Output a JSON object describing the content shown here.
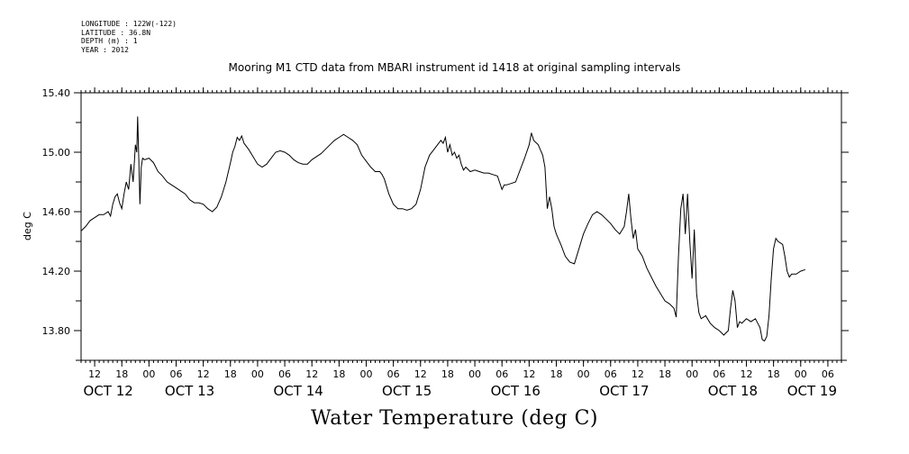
{
  "header": {
    "longitude": "LONGITUDE : 122W(-122)",
    "latitude": "LATITUDE : 36.8N",
    "depth": "DEPTH (m) : 1",
    "year": "YEAR : 2012"
  },
  "chart_data": {
    "type": "line",
    "title": "Mooring M1 CTD data from MBARI instrument id 1418 at original sampling intervals",
    "xlabel": "Water Temperature (deg C)",
    "ylabel": "deg C",
    "x_units": "hours since OCT 12 00:00",
    "xlim": [
      9,
      177
    ],
    "ylim": [
      13.6,
      15.4
    ],
    "yticks": [
      "13.80",
      "14.20",
      "14.60",
      "15.00",
      "15.40"
    ],
    "ytick_values": [
      13.8,
      14.2,
      14.6,
      15.0,
      15.4
    ],
    "hour_ticks": [
      {
        "x": 12,
        "label": "12"
      },
      {
        "x": 18,
        "label": "18"
      },
      {
        "x": 24,
        "label": "00"
      },
      {
        "x": 30,
        "label": "06"
      },
      {
        "x": 36,
        "label": "12"
      },
      {
        "x": 42,
        "label": "18"
      },
      {
        "x": 48,
        "label": "00"
      },
      {
        "x": 54,
        "label": "06"
      },
      {
        "x": 60,
        "label": "12"
      },
      {
        "x": 66,
        "label": "18"
      },
      {
        "x": 72,
        "label": "00"
      },
      {
        "x": 78,
        "label": "06"
      },
      {
        "x": 84,
        "label": "12"
      },
      {
        "x": 90,
        "label": "18"
      },
      {
        "x": 96,
        "label": "00"
      },
      {
        "x": 102,
        "label": "06"
      },
      {
        "x": 108,
        "label": "12"
      },
      {
        "x": 114,
        "label": "18"
      },
      {
        "x": 120,
        "label": "00"
      },
      {
        "x": 126,
        "label": "06"
      },
      {
        "x": 132,
        "label": "12"
      },
      {
        "x": 138,
        "label": "18"
      },
      {
        "x": 144,
        "label": "00"
      },
      {
        "x": 150,
        "label": "06"
      },
      {
        "x": 156,
        "label": "12"
      },
      {
        "x": 162,
        "label": "18"
      },
      {
        "x": 168,
        "label": "00"
      },
      {
        "x": 174,
        "label": "06"
      }
    ],
    "day_labels": [
      {
        "x": 15,
        "label": "OCT 12"
      },
      {
        "x": 33,
        "label": "OCT 13"
      },
      {
        "x": 57,
        "label": "OCT 14"
      },
      {
        "x": 81,
        "label": "OCT 15"
      },
      {
        "x": 105,
        "label": "OCT 16"
      },
      {
        "x": 129,
        "label": "OCT 17"
      },
      {
        "x": 153,
        "label": "OCT 18"
      },
      {
        "x": 170.5,
        "label": "OCT 19"
      }
    ],
    "series": [
      {
        "points": [
          [
            9,
            14.47
          ],
          [
            10,
            14.5
          ],
          [
            11,
            14.54
          ],
          [
            12,
            14.56
          ],
          [
            13,
            14.58
          ],
          [
            14,
            14.58
          ],
          [
            15,
            14.6
          ],
          [
            15.5,
            14.57
          ],
          [
            16,
            14.65
          ],
          [
            16.5,
            14.7
          ],
          [
            17,
            14.72
          ],
          [
            17.5,
            14.66
          ],
          [
            18,
            14.62
          ],
          [
            18.5,
            14.72
          ],
          [
            19,
            14.8
          ],
          [
            19.5,
            14.75
          ],
          [
            20,
            14.92
          ],
          [
            20.5,
            14.8
          ],
          [
            21,
            15.05
          ],
          [
            21.3,
            15.0
          ],
          [
            21.5,
            15.24
          ],
          [
            21.8,
            14.9
          ],
          [
            22,
            14.65
          ],
          [
            22.3,
            14.9
          ],
          [
            22.6,
            14.96
          ],
          [
            23,
            14.95
          ],
          [
            24,
            14.96
          ],
          [
            25,
            14.93
          ],
          [
            26,
            14.87
          ],
          [
            27,
            14.84
          ],
          [
            28,
            14.8
          ],
          [
            29,
            14.78
          ],
          [
            30,
            14.76
          ],
          [
            31,
            14.74
          ],
          [
            32,
            14.72
          ],
          [
            33,
            14.68
          ],
          [
            34,
            14.66
          ],
          [
            35,
            14.66
          ],
          [
            36,
            14.65
          ],
          [
            37,
            14.62
          ],
          [
            38,
            14.6
          ],
          [
            39,
            14.63
          ],
          [
            40,
            14.7
          ],
          [
            41,
            14.8
          ],
          [
            42,
            14.93
          ],
          [
            42.5,
            15.0
          ],
          [
            43,
            15.04
          ],
          [
            43.5,
            15.1
          ],
          [
            44,
            15.08
          ],
          [
            44.5,
            15.11
          ],
          [
            45,
            15.06
          ],
          [
            46,
            15.02
          ],
          [
            47,
            14.97
          ],
          [
            48,
            14.92
          ],
          [
            49,
            14.9
          ],
          [
            50,
            14.92
          ],
          [
            51,
            14.96
          ],
          [
            52,
            15.0
          ],
          [
            53,
            15.01
          ],
          [
            54,
            15.0
          ],
          [
            55,
            14.98
          ],
          [
            56,
            14.95
          ],
          [
            57,
            14.93
          ],
          [
            58,
            14.92
          ],
          [
            59,
            14.92
          ],
          [
            60,
            14.95
          ],
          [
            61,
            14.97
          ],
          [
            62,
            14.99
          ],
          [
            63,
            15.02
          ],
          [
            64,
            15.05
          ],
          [
            65,
            15.08
          ],
          [
            66,
            15.1
          ],
          [
            67,
            15.12
          ],
          [
            68,
            15.1
          ],
          [
            69,
            15.08
          ],
          [
            70,
            15.05
          ],
          [
            71,
            14.98
          ],
          [
            72,
            14.94
          ],
          [
            73,
            14.9
          ],
          [
            74,
            14.87
          ],
          [
            75,
            14.87
          ],
          [
            75.5,
            14.85
          ],
          [
            76,
            14.82
          ],
          [
            77,
            14.72
          ],
          [
            78,
            14.65
          ],
          [
            79,
            14.62
          ],
          [
            80,
            14.62
          ],
          [
            81,
            14.61
          ],
          [
            82,
            14.62
          ],
          [
            83,
            14.65
          ],
          [
            84,
            14.75
          ],
          [
            85,
            14.9
          ],
          [
            86,
            14.98
          ],
          [
            87,
            15.02
          ],
          [
            88,
            15.06
          ],
          [
            88.5,
            15.08
          ],
          [
            89,
            15.06
          ],
          [
            89.5,
            15.1
          ],
          [
            90,
            15.0
          ],
          [
            90.5,
            15.05
          ],
          [
            91,
            14.98
          ],
          [
            91.5,
            15.0
          ],
          [
            92,
            14.96
          ],
          [
            92.5,
            14.98
          ],
          [
            93,
            14.92
          ],
          [
            93.5,
            14.88
          ],
          [
            94,
            14.9
          ],
          [
            95,
            14.87
          ],
          [
            96,
            14.88
          ],
          [
            97,
            14.87
          ],
          [
            98,
            14.86
          ],
          [
            99,
            14.86
          ],
          [
            100,
            14.85
          ],
          [
            101,
            14.84
          ],
          [
            102,
            14.75
          ],
          [
            102.5,
            14.78
          ],
          [
            103,
            14.78
          ],
          [
            104,
            14.79
          ],
          [
            105,
            14.8
          ],
          [
            106,
            14.88
          ],
          [
            107,
            14.96
          ],
          [
            108,
            15.05
          ],
          [
            108.5,
            15.13
          ],
          [
            109,
            15.08
          ],
          [
            110,
            15.05
          ],
          [
            111,
            14.98
          ],
          [
            111.5,
            14.9
          ],
          [
            112,
            14.62
          ],
          [
            112.5,
            14.7
          ],
          [
            113,
            14.62
          ],
          [
            113.5,
            14.5
          ],
          [
            114,
            14.45
          ],
          [
            115,
            14.38
          ],
          [
            116,
            14.3
          ],
          [
            117,
            14.26
          ],
          [
            118,
            14.25
          ],
          [
            119,
            14.35
          ],
          [
            120,
            14.45
          ],
          [
            121,
            14.52
          ],
          [
            122,
            14.58
          ],
          [
            123,
            14.6
          ],
          [
            124,
            14.58
          ],
          [
            125,
            14.55
          ],
          [
            126,
            14.52
          ],
          [
            127,
            14.48
          ],
          [
            128,
            14.45
          ],
          [
            129,
            14.5
          ],
          [
            129.5,
            14.6
          ],
          [
            130,
            14.72
          ],
          [
            130.5,
            14.55
          ],
          [
            131,
            14.42
          ],
          [
            131.5,
            14.48
          ],
          [
            132,
            14.35
          ],
          [
            133,
            14.3
          ],
          [
            134,
            14.22
          ],
          [
            135,
            14.16
          ],
          [
            136,
            14.1
          ],
          [
            137,
            14.05
          ],
          [
            138,
            14.0
          ],
          [
            139,
            13.98
          ],
          [
            140,
            13.95
          ],
          [
            140.5,
            13.89
          ],
          [
            141,
            14.3
          ],
          [
            141.5,
            14.62
          ],
          [
            142,
            14.72
          ],
          [
            142.5,
            14.45
          ],
          [
            143,
            14.72
          ],
          [
            143.5,
            14.4
          ],
          [
            144,
            14.15
          ],
          [
            144.5,
            14.48
          ],
          [
            145,
            14.05
          ],
          [
            145.5,
            13.92
          ],
          [
            146,
            13.88
          ],
          [
            147,
            13.9
          ],
          [
            148,
            13.85
          ],
          [
            149,
            13.82
          ],
          [
            150,
            13.8
          ],
          [
            151,
            13.77
          ],
          [
            152,
            13.8
          ],
          [
            152.5,
            13.95
          ],
          [
            153,
            14.07
          ],
          [
            153.5,
            14.0
          ],
          [
            154,
            13.82
          ],
          [
            154.5,
            13.86
          ],
          [
            155,
            13.85
          ],
          [
            156,
            13.88
          ],
          [
            157,
            13.86
          ],
          [
            158,
            13.88
          ],
          [
            159,
            13.82
          ],
          [
            159.5,
            13.74
          ],
          [
            160,
            13.73
          ],
          [
            160.5,
            13.76
          ],
          [
            161,
            13.9
          ],
          [
            161.5,
            14.15
          ],
          [
            162,
            14.35
          ],
          [
            162.5,
            14.42
          ],
          [
            163,
            14.4
          ],
          [
            164,
            14.38
          ],
          [
            164.5,
            14.3
          ],
          [
            165,
            14.2
          ],
          [
            165.5,
            14.16
          ],
          [
            166,
            14.18
          ],
          [
            167,
            14.18
          ],
          [
            168,
            14.2
          ],
          [
            169,
            14.21
          ]
        ]
      }
    ]
  }
}
